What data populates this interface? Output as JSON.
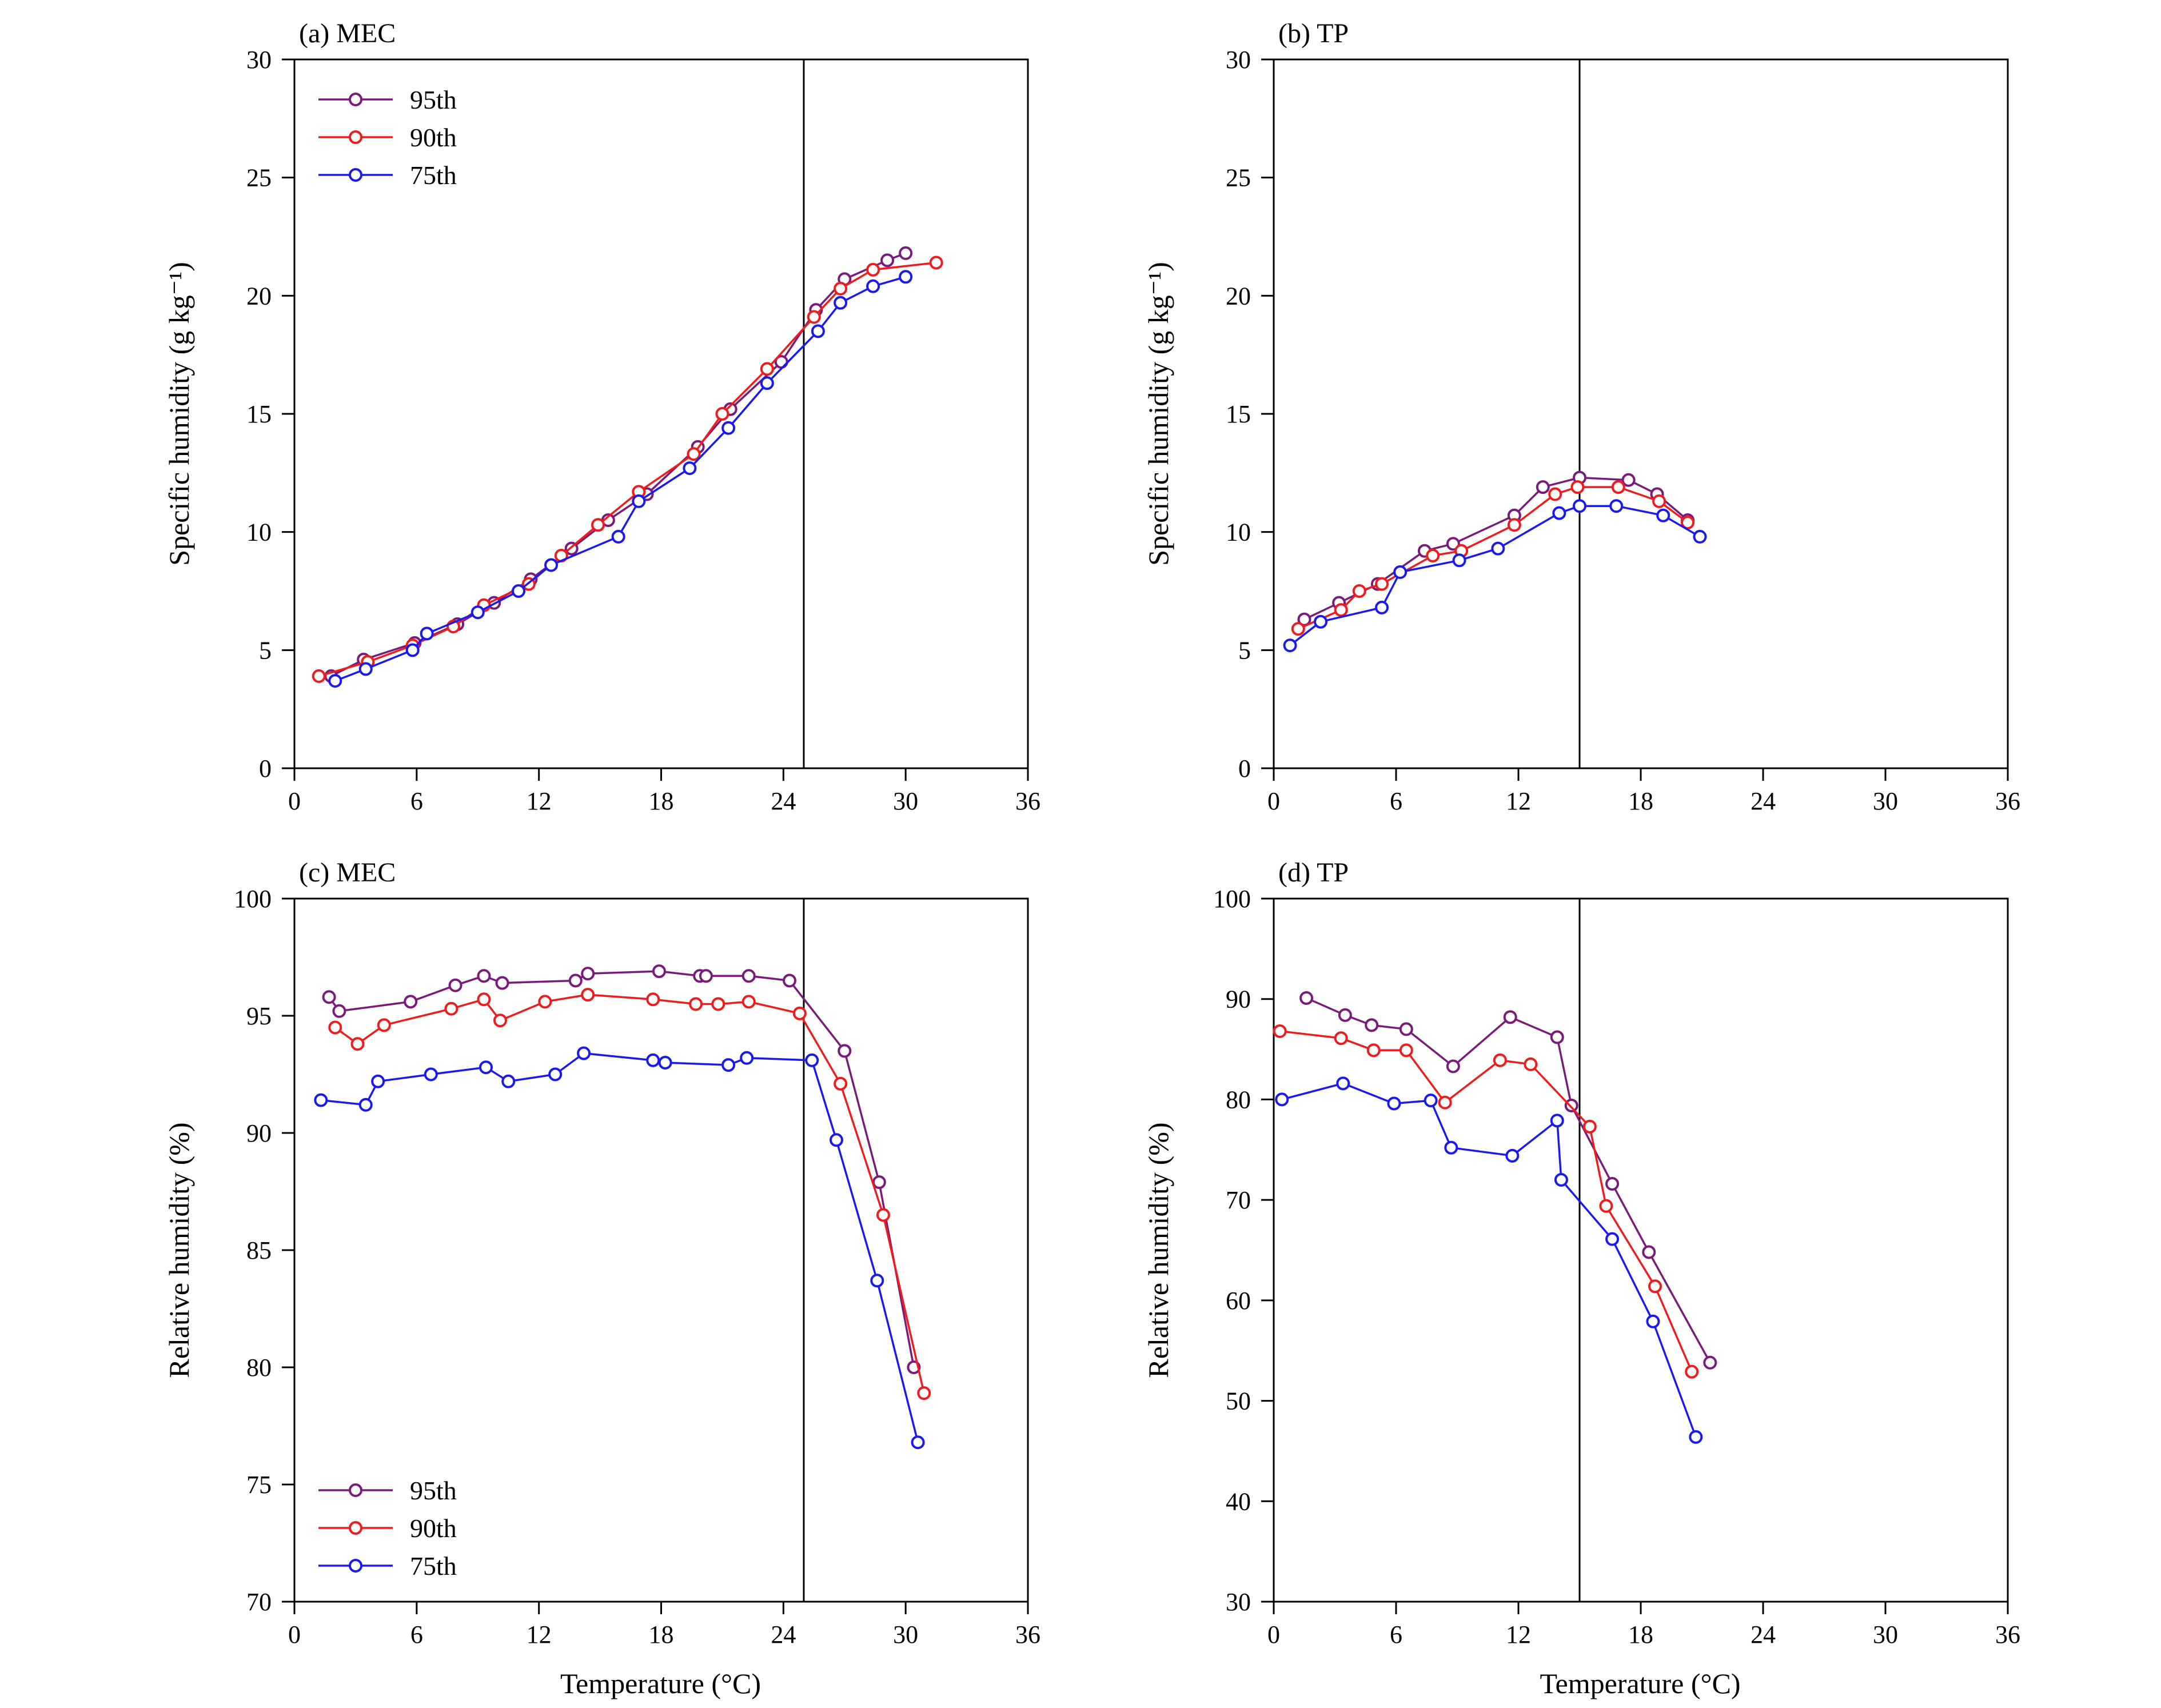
{
  "colors": {
    "p95": "#7a1a7a",
    "p90": "#ee1c1c",
    "p75": "#1a1aee",
    "axis": "#000000"
  },
  "chart_data": [
    {
      "type": "line",
      "panel": "a",
      "title": "(a) MEC",
      "xlabel": "",
      "ylabel": "Specific humidity (g kg⁻¹)",
      "xlim": [
        0,
        36
      ],
      "ylim": [
        0,
        30
      ],
      "xticks": [
        "0",
        "6",
        "12",
        "18",
        "24",
        "30",
        "36"
      ],
      "yticks": [
        "0",
        "5",
        "10",
        "15",
        "20",
        "25",
        "30"
      ],
      "vline": 25,
      "legend": "top-left",
      "series": [
        {
          "name": "95th",
          "color_key": "p95",
          "x": [
            1.8,
            3.4,
            5.9,
            8.0,
            9.8,
            11.6,
            13.6,
            15.4,
            17.3,
            19.8,
            21.4,
            23.9,
            25.6,
            27.0,
            29.1,
            30.0
          ],
          "y": [
            3.9,
            4.6,
            5.3,
            6.1,
            7.0,
            8.0,
            9.3,
            10.5,
            11.6,
            13.6,
            15.2,
            17.2,
            19.4,
            20.7,
            21.5,
            21.8
          ]
        },
        {
          "name": "90th",
          "color_key": "p90",
          "x": [
            1.2,
            3.6,
            5.8,
            7.8,
            9.3,
            11.5,
            13.1,
            14.9,
            16.9,
            19.6,
            21.0,
            23.2,
            25.5,
            26.8,
            28.4,
            31.5
          ],
          "y": [
            3.9,
            4.5,
            5.2,
            6.0,
            6.9,
            7.8,
            9.0,
            10.3,
            11.7,
            13.3,
            15.0,
            16.9,
            19.1,
            20.3,
            21.1,
            21.4
          ]
        },
        {
          "name": "75th",
          "color_key": "p75",
          "x": [
            2.0,
            3.5,
            5.8,
            6.5,
            9.0,
            11.0,
            12.6,
            15.9,
            16.9,
            19.4,
            21.3,
            23.2,
            25.7,
            26.8,
            28.4,
            30.0
          ],
          "y": [
            3.7,
            4.2,
            5.0,
            5.7,
            6.6,
            7.5,
            8.6,
            9.8,
            11.3,
            12.7,
            14.4,
            16.3,
            18.5,
            19.7,
            20.4,
            20.8
          ]
        }
      ]
    },
    {
      "type": "line",
      "panel": "b",
      "title": "(b) TP",
      "xlabel": "",
      "ylabel": "Specific humidity (g kg⁻¹)",
      "xlim": [
        0,
        36
      ],
      "ylim": [
        0,
        30
      ],
      "xticks": [
        "0",
        "6",
        "12",
        "18",
        "24",
        "30",
        "36"
      ],
      "yticks": [
        "0",
        "5",
        "10",
        "15",
        "20",
        "25",
        "30"
      ],
      "vline": 15,
      "legend": "none",
      "series": [
        {
          "name": "95th",
          "color_key": "p95",
          "x": [
            1.5,
            3.2,
            5.1,
            7.4,
            8.8,
            11.8,
            13.2,
            15.0,
            17.4,
            18.8,
            20.3
          ],
          "y": [
            6.3,
            7.0,
            7.8,
            9.2,
            9.5,
            10.7,
            11.9,
            12.3,
            12.2,
            11.6,
            10.5
          ]
        },
        {
          "name": "90th",
          "color_key": "p90",
          "x": [
            1.2,
            3.3,
            4.2,
            5.3,
            7.8,
            9.2,
            11.8,
            13.8,
            14.9,
            16.9,
            18.9,
            20.3
          ],
          "y": [
            5.9,
            6.7,
            7.5,
            7.8,
            9.0,
            9.2,
            10.3,
            11.6,
            11.9,
            11.9,
            11.3,
            10.4
          ]
        },
        {
          "name": "75th",
          "color_key": "p75",
          "x": [
            0.8,
            2.3,
            5.3,
            6.2,
            9.1,
            11.0,
            14.0,
            15.0,
            16.8,
            19.1,
            20.9
          ],
          "y": [
            5.2,
            6.2,
            6.8,
            8.3,
            8.8,
            9.3,
            10.8,
            11.1,
            11.1,
            10.7,
            9.8
          ]
        }
      ]
    },
    {
      "type": "line",
      "panel": "c",
      "title": "(c) MEC",
      "xlabel": "Temperature (°C)",
      "ylabel": "Relative humidity (%)",
      "xlim": [
        0,
        36
      ],
      "ylim": [
        70,
        100
      ],
      "xticks": [
        "0",
        "6",
        "12",
        "18",
        "24",
        "30",
        "36"
      ],
      "yticks": [
        "70",
        "75",
        "80",
        "85",
        "90",
        "95",
        "100"
      ],
      "vline": 25,
      "legend": "bottom-left",
      "series": [
        {
          "name": "95th",
          "color_key": "p95",
          "x": [
            1.7,
            2.2,
            5.7,
            7.9,
            9.3,
            10.2,
            13.8,
            14.4,
            17.9,
            19.9,
            20.2,
            22.3,
            24.3,
            27.0,
            28.7,
            30.4
          ],
          "y": [
            95.8,
            95.2,
            95.6,
            96.3,
            96.7,
            96.4,
            96.5,
            96.8,
            96.9,
            96.7,
            96.7,
            96.7,
            96.5,
            93.5,
            87.9,
            80.0
          ]
        },
        {
          "name": "90th",
          "color_key": "p90",
          "x": [
            2.0,
            3.1,
            4.4,
            7.7,
            9.3,
            10.1,
            12.3,
            14.4,
            17.6,
            19.7,
            20.8,
            22.3,
            24.8,
            26.8,
            28.9,
            30.9
          ],
          "y": [
            94.5,
            93.8,
            94.6,
            95.3,
            95.7,
            94.8,
            95.6,
            95.9,
            95.7,
            95.5,
            95.5,
            95.6,
            95.1,
            92.1,
            86.5,
            78.9
          ]
        },
        {
          "name": "75th",
          "color_key": "p75",
          "x": [
            1.3,
            3.5,
            4.1,
            6.7,
            9.4,
            10.5,
            12.8,
            14.2,
            17.6,
            18.2,
            21.3,
            22.2,
            25.4,
            26.6,
            28.6,
            30.6
          ],
          "y": [
            91.4,
            91.2,
            92.2,
            92.5,
            92.8,
            92.2,
            92.5,
            93.4,
            93.1,
            93.0,
            92.9,
            93.2,
            93.1,
            89.7,
            83.7,
            76.8
          ]
        }
      ]
    },
    {
      "type": "line",
      "panel": "d",
      "title": "(d) TP",
      "xlabel": "Temperature (°C)",
      "ylabel": "Relative humidity (%)",
      "xlim": [
        0,
        36
      ],
      "ylim": [
        30,
        100
      ],
      "xticks": [
        "0",
        "6",
        "12",
        "18",
        "24",
        "30",
        "36"
      ],
      "yticks": [
        "30",
        "40",
        "50",
        "60",
        "70",
        "80",
        "90",
        "100"
      ],
      "vline": 15,
      "legend": "none",
      "series": [
        {
          "name": "95th",
          "color_key": "p95",
          "x": [
            1.6,
            3.5,
            4.8,
            6.5,
            8.8,
            11.6,
            13.9,
            14.6,
            16.6,
            18.4,
            21.4
          ],
          "y": [
            90.1,
            88.4,
            87.4,
            87.0,
            83.3,
            88.2,
            86.2,
            79.4,
            71.6,
            64.8,
            53.8
          ]
        },
        {
          "name": "90th",
          "color_key": "p90",
          "x": [
            0.3,
            3.3,
            4.9,
            6.5,
            8.4,
            11.1,
            12.6,
            15.5,
            16.3,
            18.7,
            20.5
          ],
          "y": [
            86.8,
            86.1,
            84.9,
            84.9,
            79.7,
            83.9,
            83.5,
            77.3,
            69.4,
            61.4,
            52.9
          ]
        },
        {
          "name": "75th",
          "color_key": "p75",
          "x": [
            0.4,
            3.4,
            5.9,
            7.7,
            8.7,
            11.7,
            13.9,
            14.1,
            16.6,
            18.6,
            20.7
          ],
          "y": [
            80.0,
            81.6,
            79.6,
            79.9,
            75.2,
            74.4,
            77.9,
            72.0,
            66.1,
            57.9,
            46.4
          ]
        }
      ]
    }
  ]
}
